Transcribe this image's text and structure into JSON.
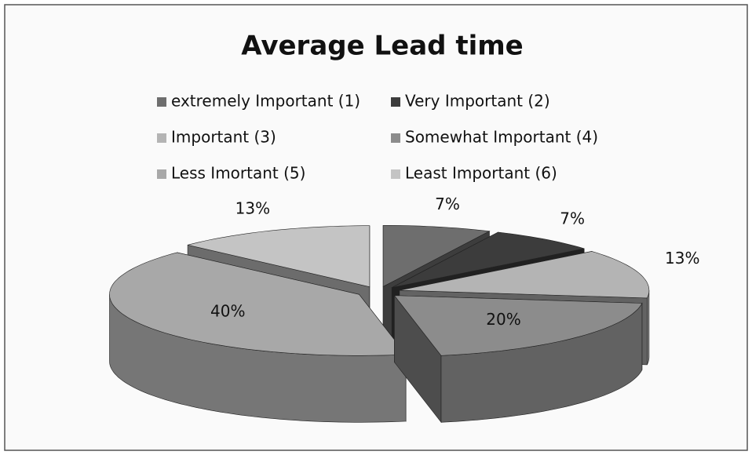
{
  "chart_data": {
    "type": "pie",
    "title": "Average Lead time",
    "categories": [
      "extremely Important (1)",
      "Very Important (2)",
      "Important (3)",
      "Somewhat Important (4)",
      "Less Imortant (5)",
      "Least Important (6)"
    ],
    "values": [
      7,
      7,
      13,
      20,
      40,
      13
    ],
    "value_labels": [
      "7%",
      "7%",
      "13%",
      "20%",
      "40%",
      "13%"
    ],
    "colors": [
      "#6e6e6e",
      "#3c3c3c",
      "#b4b4b4",
      "#8c8c8c",
      "#a8a8a8",
      "#c4c4c4"
    ]
  }
}
